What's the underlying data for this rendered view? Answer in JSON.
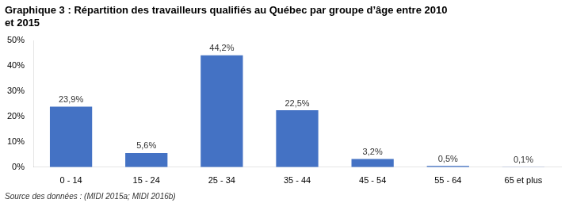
{
  "chart_data": {
    "type": "bar",
    "title": [
      "Graphique 3 : Répartition des travailleurs qualifiés au Québec par groupe d’âge entre 2010",
      "et 2015"
    ],
    "source": "Source des données : (MIDI 2015a; MIDI 2016b)",
    "categories": [
      "0 - 14",
      "15 - 24",
      "25 - 34",
      "35 - 44",
      "45 - 54",
      "55 - 64",
      "65 et plus"
    ],
    "values": [
      23.9,
      5.6,
      44.2,
      22.5,
      3.2,
      0.5,
      0.1
    ],
    "value_labels": [
      "23,9%",
      "5,6%",
      "44,2%",
      "22,5%",
      "3,2%",
      "0,5%",
      "0,1%"
    ],
    "data_labels": true,
    "color": "#4472C4",
    "ylim": [
      0,
      50
    ],
    "yticks": [
      {
        "value": 0,
        "label": "0%"
      },
      {
        "value": 10,
        "label": "10%"
      },
      {
        "value": 20,
        "label": "20%"
      },
      {
        "value": 30,
        "label": "30%"
      },
      {
        "value": 40,
        "label": "40%"
      },
      {
        "value": 50,
        "label": "50%"
      }
    ],
    "grid": false
  }
}
